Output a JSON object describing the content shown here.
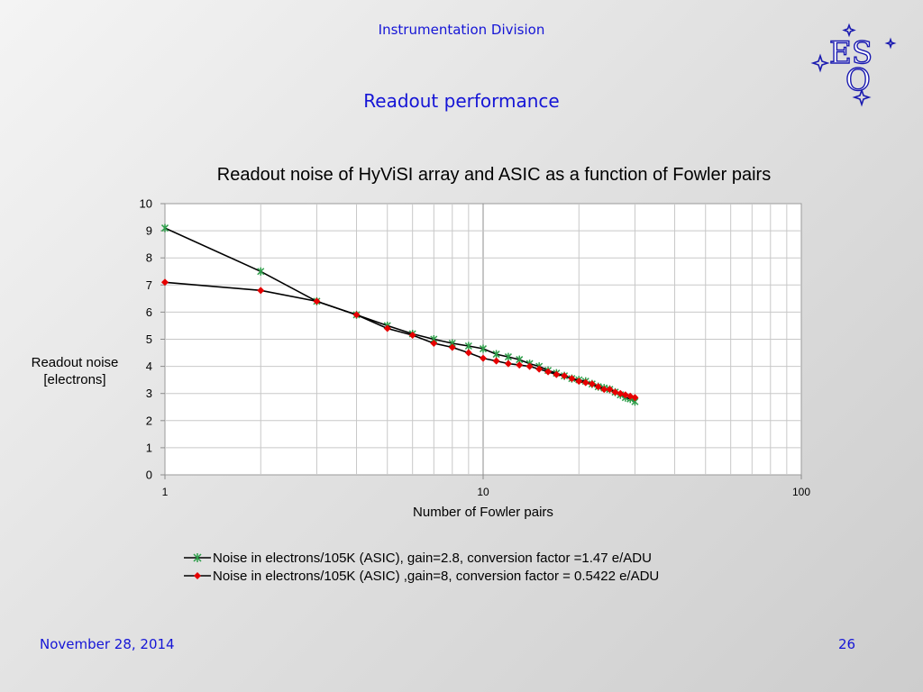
{
  "header": {
    "division": "Instrumentation Division",
    "title": "Readout performance",
    "logo_text": "ESO"
  },
  "footer": {
    "date": "November 28, 2014",
    "page": "26"
  },
  "colors": {
    "accent_text": "#1515d6",
    "series_asic_marker": "#2e9e4a",
    "series_gain8_marker": "#e60000",
    "line": "#000000"
  },
  "chart_data": {
    "type": "line",
    "title": "Readout noise of HyViSI array and ASIC as a function of Fowler pairs",
    "xlabel": "Number of Fowler pairs",
    "ylabel_lines": [
      "Readout noise",
      "[electrons]"
    ],
    "xscale": "log",
    "xlim": [
      1,
      100
    ],
    "ylim": [
      0,
      10
    ],
    "x_ticks": [
      1,
      10,
      100
    ],
    "y_ticks": [
      0,
      1,
      2,
      3,
      4,
      5,
      6,
      7,
      8,
      9,
      10
    ],
    "grid": true,
    "legend_position": "bottom",
    "series": [
      {
        "name": "Noise in electrons/105K (ASIC), gain=2.8, conversion factor =1.47 e/ADU",
        "marker": "star",
        "x": [
          1,
          2,
          3,
          4,
          5,
          6,
          7,
          8,
          9,
          10,
          11,
          12,
          13,
          14,
          15,
          16,
          17,
          18,
          19,
          20,
          21,
          22,
          23,
          24,
          25,
          26,
          27,
          28,
          29,
          30
        ],
        "y": [
          9.1,
          7.5,
          6.4,
          5.9,
          5.5,
          5.2,
          5.0,
          4.85,
          4.75,
          4.65,
          4.45,
          4.35,
          4.25,
          4.1,
          4.0,
          3.85,
          3.75,
          3.65,
          3.55,
          3.5,
          3.45,
          3.35,
          3.25,
          3.2,
          3.15,
          3.05,
          2.95,
          2.85,
          2.8,
          2.7
        ]
      },
      {
        "name": "Noise in electrons/105K (ASIC) ,gain=8, conversion factor = 0.5422 e/ADU",
        "marker": "diamond",
        "x": [
          1,
          2,
          3,
          4,
          5,
          6,
          7,
          8,
          9,
          10,
          11,
          12,
          13,
          14,
          15,
          16,
          17,
          18,
          19,
          20,
          21,
          22,
          23,
          24,
          25,
          26,
          27,
          28,
          29,
          30
        ],
        "y": [
          7.1,
          6.8,
          6.4,
          5.9,
          5.4,
          5.15,
          4.85,
          4.7,
          4.5,
          4.3,
          4.2,
          4.1,
          4.05,
          4.0,
          3.9,
          3.8,
          3.7,
          3.65,
          3.55,
          3.45,
          3.4,
          3.35,
          3.25,
          3.15,
          3.15,
          3.05,
          3.0,
          2.95,
          2.9,
          2.85
        ]
      }
    ]
  }
}
